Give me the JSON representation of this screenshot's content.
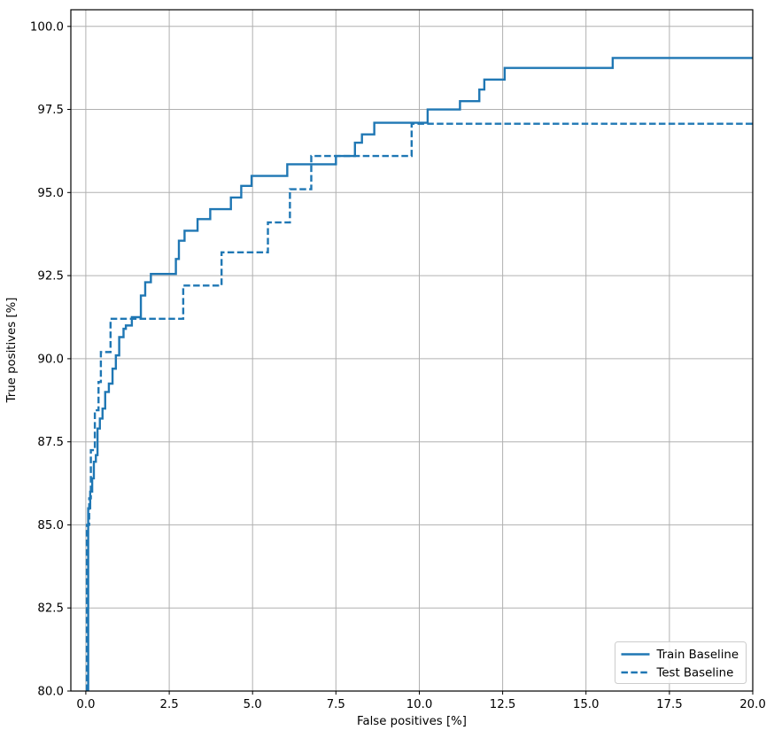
{
  "chart_data": {
    "type": "line",
    "title": "",
    "xlabel": "False positives [%]",
    "ylabel": "True positives [%]",
    "xlim": [
      -0.45,
      20.0
    ],
    "ylim": [
      80.0,
      100.5
    ],
    "xticks": [
      0.0,
      2.5,
      5.0,
      7.5,
      10.0,
      12.5,
      15.0,
      17.5,
      20.0
    ],
    "yticks": [
      80.0,
      82.5,
      85.0,
      87.5,
      90.0,
      92.5,
      95.0,
      97.5,
      100.0
    ],
    "tick_decimals": 1,
    "grid": true,
    "grid_color": "#b0b0b0",
    "spine_color": "#000000",
    "line_color": "#1f77b4",
    "legend_position": "lower right",
    "series": [
      {
        "name": "Train Baseline",
        "style": "solid",
        "points": [
          [
            0.07,
            80
          ],
          [
            0.07,
            85.5
          ],
          [
            0.13,
            85.5
          ],
          [
            0.13,
            86.0
          ],
          [
            0.19,
            86.0
          ],
          [
            0.19,
            86.4
          ],
          [
            0.24,
            86.4
          ],
          [
            0.24,
            86.9
          ],
          [
            0.3,
            86.9
          ],
          [
            0.3,
            87.1
          ],
          [
            0.35,
            87.1
          ],
          [
            0.35,
            87.9
          ],
          [
            0.42,
            87.9
          ],
          [
            0.42,
            88.2
          ],
          [
            0.5,
            88.2
          ],
          [
            0.5,
            88.5
          ],
          [
            0.58,
            88.5
          ],
          [
            0.58,
            89.0
          ],
          [
            0.69,
            89.0
          ],
          [
            0.69,
            89.25
          ],
          [
            0.8,
            89.25
          ],
          [
            0.8,
            89.7
          ],
          [
            0.9,
            89.7
          ],
          [
            0.9,
            90.1
          ],
          [
            1.0,
            90.1
          ],
          [
            1.0,
            90.65
          ],
          [
            1.13,
            90.65
          ],
          [
            1.13,
            90.9
          ],
          [
            1.2,
            90.9
          ],
          [
            1.2,
            91.0
          ],
          [
            1.38,
            91.0
          ],
          [
            1.38,
            91.25
          ],
          [
            1.65,
            91.25
          ],
          [
            1.65,
            91.9
          ],
          [
            1.78,
            91.9
          ],
          [
            1.78,
            92.3
          ],
          [
            1.95,
            92.3
          ],
          [
            1.95,
            92.55
          ],
          [
            2.7,
            92.55
          ],
          [
            2.7,
            93.0
          ],
          [
            2.79,
            93.0
          ],
          [
            2.79,
            93.55
          ],
          [
            2.96,
            93.55
          ],
          [
            2.96,
            93.85
          ],
          [
            3.35,
            93.85
          ],
          [
            3.35,
            94.2
          ],
          [
            3.73,
            94.2
          ],
          [
            3.73,
            94.5
          ],
          [
            4.35,
            94.5
          ],
          [
            4.35,
            94.85
          ],
          [
            4.66,
            94.85
          ],
          [
            4.66,
            95.2
          ],
          [
            4.97,
            95.2
          ],
          [
            4.97,
            95.5
          ],
          [
            6.04,
            95.5
          ],
          [
            6.04,
            95.85
          ],
          [
            7.5,
            95.85
          ],
          [
            7.5,
            96.1
          ],
          [
            8.07,
            96.1
          ],
          [
            8.07,
            96.5
          ],
          [
            8.28,
            96.5
          ],
          [
            8.28,
            96.75
          ],
          [
            8.65,
            96.75
          ],
          [
            8.65,
            97.1
          ],
          [
            10.25,
            97.1
          ],
          [
            10.25,
            97.5
          ],
          [
            11.22,
            97.5
          ],
          [
            11.22,
            97.75
          ],
          [
            11.8,
            97.75
          ],
          [
            11.8,
            98.1
          ],
          [
            11.95,
            98.1
          ],
          [
            11.95,
            98.4
          ],
          [
            12.56,
            98.4
          ],
          [
            12.56,
            98.75
          ],
          [
            15.8,
            98.75
          ],
          [
            15.8,
            99.05
          ],
          [
            20.0,
            99.05
          ]
        ]
      },
      {
        "name": "Test Baseline",
        "style": "dashed",
        "points": [
          [
            0.03,
            80
          ],
          [
            0.03,
            85.0
          ],
          [
            0.1,
            85.0
          ],
          [
            0.1,
            85.8
          ],
          [
            0.15,
            85.8
          ],
          [
            0.15,
            87.25
          ],
          [
            0.27,
            87.25
          ],
          [
            0.27,
            88.45
          ],
          [
            0.38,
            88.45
          ],
          [
            0.38,
            89.3
          ],
          [
            0.45,
            89.3
          ],
          [
            0.45,
            90.2
          ],
          [
            0.74,
            90.2
          ],
          [
            0.74,
            91.2
          ],
          [
            2.92,
            91.2
          ],
          [
            2.92,
            92.2
          ],
          [
            4.07,
            92.2
          ],
          [
            4.07,
            93.2
          ],
          [
            5.46,
            93.2
          ],
          [
            5.46,
            94.1
          ],
          [
            6.12,
            94.1
          ],
          [
            6.12,
            95.1
          ],
          [
            6.76,
            95.1
          ],
          [
            6.76,
            96.1
          ],
          [
            9.77,
            96.1
          ],
          [
            9.77,
            97.07
          ],
          [
            20.0,
            97.07
          ]
        ]
      }
    ]
  }
}
